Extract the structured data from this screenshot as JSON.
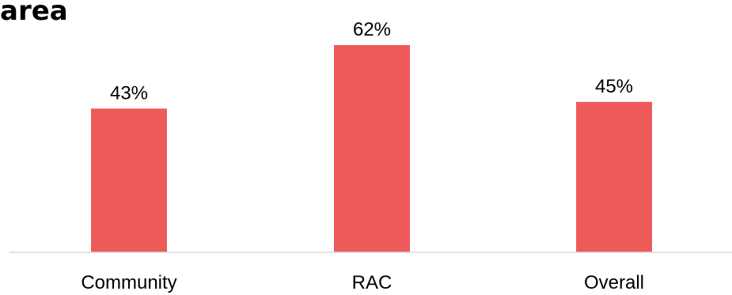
{
  "title_fragment": "area",
  "chart_data": {
    "type": "bar",
    "categories": [
      "Community",
      "RAC",
      "Overall"
    ],
    "values": [
      43,
      62,
      45
    ],
    "value_labels": [
      "43%",
      "62%",
      "45%"
    ],
    "value_unit": "%",
    "ylim": [
      0,
      65
    ],
    "grid": false,
    "bar_color": "#ee5a5a",
    "axis_color": "#d9d9d9"
  }
}
